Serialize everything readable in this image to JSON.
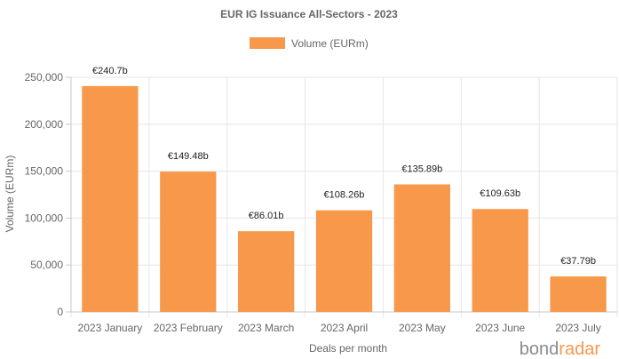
{
  "chart_data": {
    "type": "bar",
    "title": "EUR IG Issuance All-Sectors - 2023",
    "xlabel": "Deals per month",
    "ylabel": "Volume (EURm)",
    "categories": [
      "2023 January",
      "2023 February",
      "2023 March",
      "2023 April",
      "2023 May",
      "2023 June",
      "2023 July"
    ],
    "series": [
      {
        "name": "Volume (EURm)",
        "values": [
          240700,
          149480,
          86010,
          108260,
          135890,
          109630,
          37790
        ],
        "data_labels": [
          "€240.7b",
          "€149.48b",
          "€86.01b",
          "€108.26b",
          "€135.89b",
          "€109.63b",
          "€37.79b"
        ],
        "color": "#f7984a"
      }
    ],
    "ylim": [
      0,
      250000
    ],
    "yticks": [
      0,
      50000,
      100000,
      150000,
      200000,
      250000
    ],
    "ytick_labels": [
      "0",
      "50,000",
      "100,000",
      "150,000",
      "200,000",
      "250,000"
    ],
    "grid": true,
    "legend_position": "top-center"
  },
  "branding": {
    "part1": "bond",
    "part2": "radar",
    "color_part1": "#8a8a8a",
    "color_part2": "#f7984a"
  },
  "colors": {
    "grid": "#e6e6e6",
    "axis": "#c8c8c8",
    "text": "#666666"
  }
}
